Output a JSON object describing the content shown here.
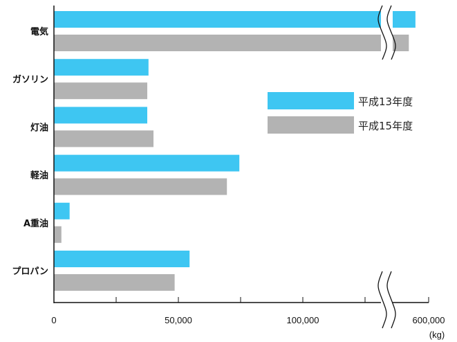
{
  "chart_data": {
    "type": "bar",
    "orientation": "horizontal",
    "categories": [
      "電気",
      "ガソリン",
      "灯油",
      "軽油",
      "A重油",
      "プロパン"
    ],
    "series": [
      {
        "name": "平成13年度",
        "color": "#3ec6f2",
        "values": [
          580000,
          38000,
          37500,
          74500,
          6300,
          54500
        ]
      },
      {
        "name": "平成15年度",
        "color": "#b3b3b3",
        "values": [
          570000,
          37500,
          40000,
          69500,
          3000,
          48500
        ]
      }
    ],
    "x_ticks": [
      "0",
      "50,000",
      "100,000",
      "600,000"
    ],
    "x_unit": "(kg)",
    "axis_break": {
      "from": 128000,
      "to": 555000
    },
    "legend_position": "right-upper"
  }
}
